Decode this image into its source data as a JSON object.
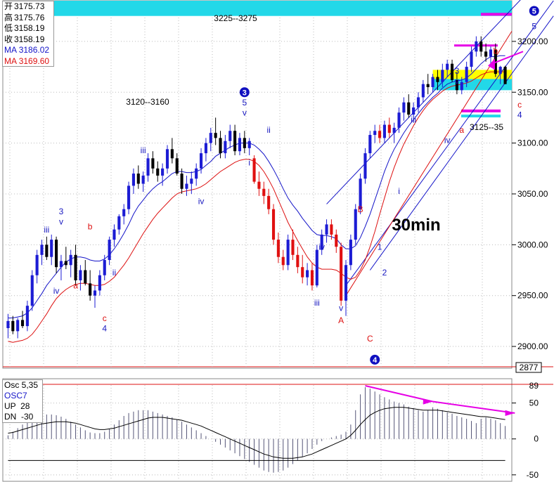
{
  "info": {
    "open_label": "开",
    "open": "3175.73",
    "high_label": "高",
    "high": "3175.76",
    "low_label": "低",
    "low": "3158.19",
    "close_label": "收",
    "close": "3158.19",
    "ma1_label": "MA",
    "ma1": "3186.02",
    "ma2_label": "MA",
    "ma2": "3169.60"
  },
  "osc": {
    "title": "Osc 5,35",
    "name": "OSC7",
    "up_label": "UP",
    "up": "28",
    "dn_label": "DN",
    "dn": "-30"
  },
  "colors": {
    "up_candle": "#1c1cd4",
    "down_candle": "#000000",
    "red_candle": "#e01010",
    "ma_blue": "#1414c8",
    "ma_red": "#dd1010",
    "cyan_band": "#22d8e8",
    "yellow_band": "#ffff00",
    "magenta": "#e600e6",
    "wave_blue": "#1818c0",
    "wave_red": "#dd1010"
  },
  "chart_data": {
    "type": "candlestick",
    "timeframe_label": "30min",
    "price_axis": {
      "ylim": [
        2880,
        3240
      ],
      "ticks": [
        2900,
        2950,
        3000,
        3050,
        3100,
        3150,
        3200
      ],
      "tick_labels": [
        "2900.00",
        "2950.00",
        "3000.00",
        "3050.00",
        "3100.00",
        "3150.00",
        "3200.00"
      ],
      "highlight_label": "2877"
    },
    "osc_axis": {
      "ylim": [
        -58,
        75
      ],
      "ticks": [
        50,
        0,
        -50
      ],
      "tick_labels": [
        "50",
        "0",
        "-50"
      ],
      "highlight_label": "89"
    },
    "target_zones": [
      {
        "label": "3225--3275",
        "low": 3225,
        "high": 3275
      },
      {
        "label": "3120--3160"
      },
      {
        "label": "3125--35"
      }
    ],
    "bands": [
      {
        "name": "yellow",
        "low": 3163,
        "high": 3172
      },
      {
        "name": "cyan",
        "low": 3152,
        "high": 3163
      }
    ],
    "candles": [
      [
        2918,
        2932,
        2908,
        2925
      ],
      [
        2925,
        2930,
        2912,
        2915
      ],
      [
        2915,
        2928,
        2908,
        2926
      ],
      [
        2926,
        2935,
        2918,
        2920
      ],
      [
        2920,
        2945,
        2915,
        2940
      ],
      [
        2940,
        2975,
        2935,
        2970
      ],
      [
        2970,
        2995,
        2962,
        2990
      ],
      [
        2990,
        3005,
        2980,
        3000
      ],
      [
        3000,
        3008,
        2985,
        2988
      ],
      [
        2988,
        3010,
        2980,
        3005
      ],
      [
        3005,
        3008,
        2972,
        2978
      ],
      [
        2978,
        2990,
        2965,
        2984
      ],
      [
        2984,
        2998,
        2976,
        2980
      ],
      [
        2980,
        2995,
        2968,
        2990
      ],
      [
        2990,
        3000,
        2960,
        2965
      ],
      [
        2965,
        2980,
        2955,
        2975
      ],
      [
        2975,
        2985,
        2960,
        2962
      ],
      [
        2962,
        2975,
        2945,
        2950
      ],
      [
        2950,
        2960,
        2938,
        2955
      ],
      [
        2955,
        2975,
        2950,
        2970
      ],
      [
        2970,
        2990,
        2965,
        2985
      ],
      [
        2985,
        3008,
        2980,
        3005
      ],
      [
        3005,
        3020,
        2998,
        3015
      ],
      [
        3015,
        3030,
        3010,
        3028
      ],
      [
        3028,
        3040,
        3020,
        3035
      ],
      [
        3035,
        3062,
        3030,
        3058
      ],
      [
        3058,
        3075,
        3050,
        3070
      ],
      [
        3070,
        3078,
        3055,
        3060
      ],
      [
        3060,
        3072,
        3052,
        3068
      ],
      [
        3068,
        3090,
        3062,
        3085
      ],
      [
        3085,
        3092,
        3070,
        3075
      ],
      [
        3075,
        3082,
        3062,
        3068
      ],
      [
        3068,
        3080,
        3058,
        3075
      ],
      [
        3075,
        3098,
        3070,
        3094
      ],
      [
        3094,
        3105,
        3080,
        3085
      ],
      [
        3085,
        3090,
        3068,
        3070
      ],
      [
        3070,
        3075,
        3050,
        3055
      ],
      [
        3055,
        3068,
        3048,
        3060
      ],
      [
        3060,
        3072,
        3050,
        3065
      ],
      [
        3065,
        3080,
        3058,
        3075
      ],
      [
        3075,
        3095,
        3070,
        3090
      ],
      [
        3090,
        3105,
        3082,
        3100
      ],
      [
        3100,
        3115,
        3092,
        3110
      ],
      [
        3110,
        3125,
        3098,
        3105
      ],
      [
        3105,
        3112,
        3085,
        3090
      ],
      [
        3090,
        3108,
        3085,
        3102
      ],
      [
        3102,
        3118,
        3095,
        3112
      ],
      [
        3112,
        3118,
        3088,
        3092
      ],
      [
        3092,
        3110,
        3088,
        3105
      ],
      [
        3105,
        3112,
        3090,
        3095
      ],
      [
        3095,
        3105,
        3088,
        3102
      ],
      [
        3085,
        3088,
        3060,
        3062
      ],
      [
        3062,
        3072,
        3048,
        3055
      ],
      [
        3055,
        3062,
        3040,
        3048
      ],
      [
        3048,
        3055,
        3030,
        3035
      ],
      [
        3035,
        3040,
        3000,
        3005
      ],
      [
        3005,
        3012,
        2982,
        2988
      ],
      [
        2988,
        2995,
        2975,
        2980
      ],
      [
        2980,
        3010,
        2975,
        3005
      ],
      [
        3005,
        3015,
        2985,
        2990
      ],
      [
        2990,
        2998,
        2972,
        2978
      ],
      [
        2978,
        2990,
        2962,
        2968
      ],
      [
        2968,
        2982,
        2960,
        2975
      ],
      [
        2975,
        2982,
        2955,
        2960
      ],
      [
        2960,
        3000,
        2958,
        2995
      ],
      [
        2995,
        3015,
        2990,
        3010
      ],
      [
        3010,
        3025,
        3002,
        3020
      ],
      [
        3020,
        3025,
        3005,
        3010
      ],
      [
        3010,
        3015,
        2992,
        2998
      ],
      [
        2998,
        3002,
        2940,
        2945
      ],
      [
        2945,
        2985,
        2930,
        2980
      ],
      [
        2980,
        3010,
        2975,
        3005
      ],
      [
        3005,
        3040,
        3000,
        3035
      ],
      [
        3035,
        3070,
        3030,
        3065
      ],
      [
        3065,
        3095,
        3060,
        3090
      ],
      [
        3090,
        3112,
        3085,
        3108
      ],
      [
        3108,
        3118,
        3100,
        3112
      ],
      [
        3112,
        3118,
        3100,
        3105
      ],
      [
        3105,
        3122,
        3100,
        3118
      ],
      [
        3118,
        3125,
        3105,
        3110
      ],
      [
        3110,
        3120,
        3100,
        3115
      ],
      [
        3115,
        3135,
        3110,
        3130
      ],
      [
        3130,
        3145,
        3122,
        3140
      ],
      [
        3140,
        3148,
        3125,
        3128
      ],
      [
        3128,
        3140,
        3120,
        3135
      ],
      [
        3135,
        3150,
        3130,
        3145
      ],
      [
        3145,
        3162,
        3140,
        3158
      ],
      [
        3158,
        3168,
        3148,
        3155
      ],
      [
        3155,
        3168,
        3150,
        3165
      ],
      [
        3165,
        3172,
        3152,
        3160
      ],
      [
        3160,
        3178,
        3155,
        3172
      ],
      [
        3172,
        3182,
        3165,
        3178
      ],
      [
        3178,
        3182,
        3160,
        3162
      ],
      [
        3162,
        3170,
        3148,
        3152
      ],
      [
        3152,
        3165,
        3148,
        3160
      ],
      [
        3160,
        3180,
        3155,
        3175
      ],
      [
        3175,
        3195,
        3170,
        3190
      ],
      [
        3190,
        3205,
        3185,
        3200
      ],
      [
        3200,
        3205,
        3185,
        3190
      ],
      [
        3190,
        3198,
        3180,
        3185
      ],
      [
        3185,
        3195,
        3175,
        3192
      ],
      [
        3192,
        3198,
        3165,
        3168
      ],
      [
        3168,
        3176,
        3158,
        3175
      ],
      [
        3175,
        3176,
        3158,
        3158
      ]
    ],
    "ma_blue": [
      2928,
      2928,
      2929,
      2930,
      2933,
      2938,
      2945,
      2952,
      2960,
      2966,
      2972,
      2978,
      2983,
      2986,
      2988,
      2988,
      2987,
      2985,
      2984,
      2984,
      2986,
      2990,
      2996,
      3003,
      3011,
      3020,
      3030,
      3038,
      3044,
      3050,
      3055,
      3059,
      3062,
      3066,
      3070,
      3072,
      3072,
      3071,
      3071,
      3072,
      3074,
      3078,
      3082,
      3087,
      3090,
      3093,
      3096,
      3098,
      3100,
      3100,
      3100,
      3098,
      3094,
      3089,
      3082,
      3074,
      3065,
      3055,
      3046,
      3039,
      3033,
      3026,
      3020,
      3014,
      3010,
      3009,
      3009,
      3008,
      3006,
      3000,
      2996,
      2996,
      2999,
      3007,
      3018,
      3030,
      3044,
      3058,
      3072,
      3084,
      3094,
      3102,
      3110,
      3117,
      3123,
      3129,
      3135,
      3140,
      3145,
      3149,
      3154,
      3158,
      3160,
      3161,
      3162,
      3164,
      3168,
      3173,
      3178,
      3182,
      3185,
      3185,
      3186,
      3186
    ],
    "ma_red": [
      2905,
      2904,
      2905,
      2906,
      2908,
      2912,
      2918,
      2925,
      2932,
      2940,
      2947,
      2952,
      2956,
      2959,
      2961,
      2962,
      2962,
      2961,
      2960,
      2960,
      2961,
      2964,
      2968,
      2974,
      2980,
      2987,
      2995,
      3003,
      3011,
      3018,
      3025,
      3031,
      3036,
      3041,
      3046,
      3050,
      3052,
      3053,
      3054,
      3055,
      3057,
      3060,
      3064,
      3068,
      3072,
      3075,
      3078,
      3081,
      3083,
      3084,
      3084,
      3082,
      3078,
      3072,
      3064,
      3055,
      3044,
      3033,
      3022,
      3013,
      3004,
      2996,
      2988,
      2982,
      2978,
      2976,
      2976,
      2976,
      2975,
      2972,
      2968,
      2966,
      2968,
      2975,
      2985,
      2998,
      3013,
      3030,
      3046,
      3062,
      3076,
      3088,
      3099,
      3108,
      3117,
      3125,
      3132,
      3138,
      3143,
      3147,
      3151,
      3154,
      3156,
      3157,
      3158,
      3159,
      3161,
      3164,
      3167,
      3169,
      3170,
      3170,
      3170,
      3170
    ],
    "osc_histogram": [
      5,
      10,
      15,
      20,
      25,
      28,
      30,
      32,
      34,
      34,
      33,
      31,
      28,
      24,
      20,
      16,
      12,
      9,
      8,
      8,
      10,
      14,
      20,
      26,
      32,
      36,
      38,
      40,
      40,
      40,
      38,
      36,
      34,
      32,
      30,
      27,
      24,
      20,
      16,
      12,
      8,
      4,
      0,
      -4,
      -8,
      -12,
      -16,
      -20,
      -24,
      -28,
      -32,
      -36,
      -40,
      -44,
      -46,
      -47,
      -46,
      -44,
      -40,
      -35,
      -30,
      -25,
      -20,
      -14,
      -8,
      -3,
      0,
      2,
      4,
      6,
      10,
      20,
      40,
      62,
      72,
      70,
      66,
      62,
      58,
      55,
      52,
      50,
      48,
      45,
      43,
      40,
      38,
      40,
      44,
      42,
      40,
      37,
      35,
      32,
      30,
      28,
      25,
      22,
      28,
      30,
      28,
      26,
      22,
      18
    ],
    "osc_ma": [
      8,
      9,
      11,
      13,
      15,
      17,
      19,
      21,
      22,
      23,
      24,
      24,
      24,
      23,
      22,
      20,
      18,
      16,
      14,
      13,
      13,
      14,
      15,
      17,
      19,
      21,
      23,
      25,
      27,
      29,
      30,
      30,
      30,
      29,
      28,
      27,
      26,
      24,
      22,
      20,
      18,
      15,
      12,
      9,
      6,
      3,
      0,
      -3,
      -6,
      -9,
      -12,
      -15,
      -18,
      -21,
      -23,
      -25,
      -26,
      -27,
      -27,
      -27,
      -26,
      -25,
      -23,
      -21,
      -18,
      -15,
      -12,
      -9,
      -6,
      -3,
      0,
      5,
      12,
      20,
      27,
      33,
      37,
      40,
      42,
      43,
      44,
      44,
      44,
      43,
      42,
      41,
      40,
      40,
      40,
      40,
      39,
      38,
      37,
      36,
      35,
      34,
      33,
      32,
      31,
      31,
      30,
      29,
      28,
      27
    ],
    "osc_lower_line": [
      -30,
      -30,
      -30,
      -30,
      -30,
      -30,
      -30,
      -30,
      -30,
      -30,
      -30,
      -30,
      -30,
      -30,
      -30,
      -30,
      -30,
      -30,
      -30,
      -30,
      -30,
      -30,
      -30,
      -30,
      -30,
      -30,
      -30,
      -30,
      -30,
      -30,
      -30,
      -30,
      -30,
      -30,
      -30,
      -30,
      -30,
      -30,
      -30,
      -30,
      -30,
      -30,
      -30,
      -30,
      -30,
      -30,
      -30,
      -30,
      -30,
      -30,
      -30,
      -30,
      -30,
      -30,
      -30,
      -30,
      -30,
      -30,
      -30,
      -30,
      -30,
      -30,
      -30,
      -30,
      -30,
      -30,
      -30,
      -30,
      -30,
      -30,
      -30,
      -30,
      -30,
      -30,
      -30,
      -30,
      -30,
      -30,
      -30,
      -30,
      -30,
      -30,
      -30,
      -30,
      -30,
      -30,
      -30,
      -30,
      -30,
      -30,
      -30,
      -30,
      -30,
      -30,
      -30,
      -30,
      -30,
      -30,
      -30,
      -30,
      -30,
      -30,
      -30,
      -30
    ],
    "wave_labels": [
      {
        "text": "iii",
        "i": 8,
        "price": 3012,
        "color": "blue"
      },
      {
        "text": "3",
        "i": 11,
        "price": 3030,
        "color": "blue"
      },
      {
        "text": "v",
        "i": 11,
        "price": 3020,
        "color": "blue"
      },
      {
        "text": "iv",
        "i": 10,
        "price": 2952,
        "color": "blue"
      },
      {
        "text": "a",
        "i": 14,
        "price": 2957,
        "color": "red"
      },
      {
        "text": "b",
        "i": 17,
        "price": 3015,
        "color": "red"
      },
      {
        "text": "ii",
        "i": 22,
        "price": 2970,
        "color": "blue"
      },
      {
        "text": "c",
        "i": 20,
        "price": 2925,
        "color": "red"
      },
      {
        "text": "4",
        "i": 20,
        "price": 2915,
        "color": "blue"
      },
      {
        "text": "iii",
        "i": 28,
        "price": 3090,
        "color": "blue"
      },
      {
        "text": "iv",
        "i": 40,
        "price": 3040,
        "color": "blue"
      },
      {
        "text": "5",
        "i": 49,
        "price": 3137,
        "color": "blue"
      },
      {
        "text": "v",
        "i": 49,
        "price": 3127,
        "color": "blue"
      },
      {
        "text": "ii",
        "i": 54,
        "price": 3110,
        "color": "blue"
      },
      {
        "text": "i",
        "i": 50,
        "price": 3078,
        "color": "blue"
      },
      {
        "text": "iv",
        "i": 65,
        "price": 2995,
        "color": "blue"
      },
      {
        "text": "iii",
        "i": 64,
        "price": 2940,
        "color": "blue"
      },
      {
        "text": "v",
        "i": 69,
        "price": 2935,
        "color": "blue"
      },
      {
        "text": "A",
        "i": 69,
        "price": 2923,
        "color": "red"
      },
      {
        "text": "B",
        "i": 73,
        "price": 3032,
        "color": "red"
      },
      {
        "text": "1",
        "i": 77,
        "price": 2995,
        "color": "blue"
      },
      {
        "text": "2",
        "i": 78,
        "price": 2970,
        "color": "blue"
      },
      {
        "text": "C",
        "i": 75,
        "price": 2905,
        "color": "red"
      },
      {
        "text": "i",
        "i": 81,
        "price": 3050,
        "color": "blue"
      },
      {
        "text": "iii",
        "i": 84,
        "price": 3120,
        "color": "blue"
      },
      {
        "text": "iv",
        "i": 91,
        "price": 3100,
        "color": "blue"
      },
      {
        "text": "a",
        "i": 94,
        "price": 3110,
        "color": "red"
      },
      {
        "text": "3",
        "i": 93,
        "price": 3168,
        "color": "blue"
      },
      {
        "text": "v",
        "i": 93,
        "price": 3158,
        "color": "blue"
      },
      {
        "text": "b",
        "i": 101,
        "price": 3188,
        "color": "red"
      },
      {
        "text": "c",
        "i": 106,
        "price": 3135,
        "color": "red"
      },
      {
        "text": "4",
        "i": 106,
        "price": 3125,
        "color": "blue"
      },
      {
        "text": "5",
        "i": 109,
        "price": 3212,
        "color": "blue"
      }
    ],
    "circled_labels": [
      {
        "text": "3",
        "i": 49,
        "price": 3150
      },
      {
        "text": "4",
        "i": 76,
        "price": 2887
      },
      {
        "text": "5",
        "i": 109,
        "price": 3230
      }
    ]
  }
}
